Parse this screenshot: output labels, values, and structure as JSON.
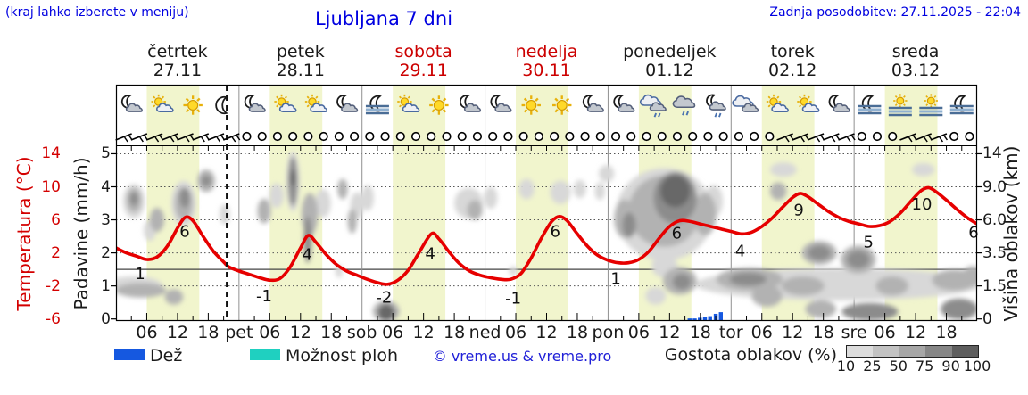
{
  "header": {
    "hint": "(kraj lahko izberete v meniju)",
    "title": "Ljubljana 7 dni",
    "updated": "Zadnja posodobitev: 27.11.2025 - 22:04"
  },
  "days": [
    {
      "name": "četrtek",
      "date": "27.11",
      "highlight": false
    },
    {
      "name": "petek",
      "date": "28.11",
      "highlight": false
    },
    {
      "name": "sobota",
      "date": "29.11",
      "highlight": true
    },
    {
      "name": "nedelja",
      "date": "30.11",
      "highlight": true
    },
    {
      "name": "ponedeljek",
      "date": "01.12",
      "highlight": false
    },
    {
      "name": "torek",
      "date": "02.12",
      "highlight": false
    },
    {
      "name": "sreda",
      "date": "03.12",
      "highlight": false
    }
  ],
  "axes": {
    "temperature": {
      "title": "Temperatura (°C)",
      "ticks": [
        14,
        10,
        6,
        2,
        -2,
        -6
      ],
      "color": "#d40000"
    },
    "precipitation": {
      "title": "Padavine (mm/h)",
      "ticks": [
        5,
        4,
        3,
        2,
        1,
        0
      ],
      "color": "#1a1a1a"
    },
    "cloud_height": {
      "title": "Višina oblakov (km)",
      "ticks": [
        "14",
        "9.0",
        "6.0",
        "3.5",
        "1.5",
        "0"
      ],
      "color": "#1a1a1a"
    },
    "time": {
      "hours": [
        "06",
        "12",
        "18"
      ],
      "day_abbr": [
        "pet",
        "sob",
        "ned",
        "pon",
        "tor",
        "sre"
      ]
    }
  },
  "legend": {
    "rain": {
      "label": "Dež",
      "color": "#1558e0"
    },
    "showers": {
      "label": "Možnost ploh",
      "color": "#1fd0c0"
    },
    "copyright": "© vreme.us & vreme.pro",
    "cloud_density": {
      "label": "Gostota oblakov (%)",
      "stops": [
        "10",
        "25",
        "50",
        "75",
        "90",
        "100"
      ],
      "colors": [
        "#dcdcdc",
        "#c2c2c2",
        "#a6a6a6",
        "#868686",
        "#5e5e5e"
      ]
    }
  },
  "chart_data": {
    "type": "line",
    "title": "Ljubljana 7 dni",
    "x_hours_range": [
      0,
      168
    ],
    "now_hour": 21.6,
    "day_band_hours": [
      6.0,
      16.25
    ],
    "day_band_color": "#f1f5cd",
    "temperature_series": {
      "name": "Temperatura",
      "unit": "°C",
      "color": "#e60000",
      "points": [
        [
          0,
          2.6
        ],
        [
          2,
          2.0
        ],
        [
          4,
          1.6
        ],
        [
          6,
          1.2
        ],
        [
          8,
          1.5
        ],
        [
          10,
          2.8
        ],
        [
          12,
          5.0
        ],
        [
          13.5,
          6.3
        ],
        [
          15,
          5.9
        ],
        [
          17,
          4.0
        ],
        [
          19,
          2.2
        ],
        [
          21,
          0.9
        ],
        [
          22,
          0.3
        ],
        [
          24,
          -0.2
        ],
        [
          26,
          -0.6
        ],
        [
          28,
          -1.0
        ],
        [
          30,
          -1.3
        ],
        [
          32,
          -1.1
        ],
        [
          34,
          0.3
        ],
        [
          36,
          2.6
        ],
        [
          37.5,
          4.1
        ],
        [
          39,
          3.3
        ],
        [
          41,
          1.8
        ],
        [
          43,
          0.6
        ],
        [
          45,
          -0.2
        ],
        [
          47,
          -0.7
        ],
        [
          49,
          -1.2
        ],
        [
          51,
          -1.6
        ],
        [
          53,
          -1.8
        ],
        [
          55,
          -1.3
        ],
        [
          57,
          -0.1
        ],
        [
          59,
          1.9
        ],
        [
          61.5,
          4.3
        ],
        [
          63,
          3.7
        ],
        [
          65,
          2.1
        ],
        [
          67,
          0.7
        ],
        [
          69,
          -0.2
        ],
        [
          71,
          -0.7
        ],
        [
          73,
          -1.0
        ],
        [
          75,
          -1.2
        ],
        [
          77,
          -1.2
        ],
        [
          79,
          -0.5
        ],
        [
          81,
          1.4
        ],
        [
          83,
          3.8
        ],
        [
          85,
          5.8
        ],
        [
          86.5,
          6.4
        ],
        [
          88,
          5.9
        ],
        [
          90,
          4.3
        ],
        [
          92,
          2.8
        ],
        [
          94,
          1.7
        ],
        [
          96,
          1.1
        ],
        [
          98,
          0.8
        ],
        [
          100,
          0.8
        ],
        [
          102,
          1.2
        ],
        [
          104,
          2.2
        ],
        [
          106,
          3.8
        ],
        [
          108,
          5.2
        ],
        [
          110,
          5.9
        ],
        [
          112,
          5.8
        ],
        [
          114,
          5.5
        ],
        [
          116,
          5.2
        ],
        [
          118,
          4.9
        ],
        [
          120,
          4.6
        ],
        [
          122,
          4.3
        ],
        [
          124,
          4.5
        ],
        [
          126,
          5.2
        ],
        [
          128,
          6.2
        ],
        [
          130,
          7.5
        ],
        [
          132,
          8.7
        ],
        [
          133.5,
          9.2
        ],
        [
          135,
          8.8
        ],
        [
          137,
          7.9
        ],
        [
          139,
          7.0
        ],
        [
          141,
          6.3
        ],
        [
          143,
          5.8
        ],
        [
          145,
          5.5
        ],
        [
          147,
          5.2
        ],
        [
          149,
          5.3
        ],
        [
          151,
          5.8
        ],
        [
          153,
          6.8
        ],
        [
          155,
          8.2
        ],
        [
          157,
          9.5
        ],
        [
          158.5,
          9.9
        ],
        [
          160,
          9.4
        ],
        [
          162,
          8.4
        ],
        [
          164,
          7.3
        ],
        [
          166,
          6.3
        ],
        [
          168,
          5.5
        ]
      ]
    },
    "temperature_labels": [
      {
        "t": 4.7,
        "at": -0.5,
        "text": "1"
      },
      {
        "t": 13.4,
        "at": 4.6,
        "text": "6"
      },
      {
        "t": 28.9,
        "at": -3.2,
        "text": "-1"
      },
      {
        "t": 37.3,
        "at": 1.8,
        "text": "4"
      },
      {
        "t": 52.3,
        "at": -3.4,
        "text": "-2"
      },
      {
        "t": 61.3,
        "at": 1.9,
        "text": "4"
      },
      {
        "t": 77.5,
        "at": -3.5,
        "text": "-1"
      },
      {
        "t": 85.7,
        "at": 4.6,
        "text": "6"
      },
      {
        "t": 97.5,
        "at": -1.1,
        "text": "1"
      },
      {
        "t": 109.4,
        "at": 4.4,
        "text": "6"
      },
      {
        "t": 121.8,
        "at": 2.2,
        "text": "4"
      },
      {
        "t": 133.2,
        "at": 7.2,
        "text": "9"
      },
      {
        "t": 146.8,
        "at": 3.3,
        "text": "5"
      },
      {
        "t": 157.2,
        "at": 7.9,
        "text": "10"
      },
      {
        "t": 167.3,
        "at": 4.5,
        "text": "6"
      }
    ],
    "precipitation_bars": {
      "unit": "mm/h",
      "color": "#1558e0",
      "bars": [
        [
          111.9,
          0.05
        ],
        [
          112.9,
          0.05
        ],
        [
          113.9,
          0.07
        ],
        [
          114.9,
          0.09
        ],
        [
          115.9,
          0.12
        ],
        [
          117,
          0.19
        ],
        [
          118,
          0.24
        ]
      ]
    },
    "wind_symbols": [
      "barb",
      "barb",
      "barb",
      "barb",
      "barb",
      "barb",
      "barb",
      "barb",
      "calm",
      "calm",
      "calm",
      "calm",
      "calm",
      "calm",
      "calm",
      "calm",
      "calm",
      "calm",
      "calm",
      "calm",
      "calm",
      "calm",
      "calm",
      "calm",
      "calm",
      "calm",
      "calm",
      "calm",
      "calm",
      "calm",
      "calm",
      "calm",
      "calm",
      "calm",
      "calm",
      "calm",
      "calm",
      "calm",
      "calm",
      "calm",
      "calm",
      "calm",
      "calm",
      "barb",
      "barb",
      "barb",
      "barb",
      "barb",
      "calm",
      "calm",
      "calm",
      "barb",
      "barb",
      "barb",
      "calm",
      "calm"
    ],
    "weather_icons": [
      "moon-cloud",
      "sun-cloud",
      "sun",
      "moon",
      "moon-cloud",
      "sun-cloud",
      "sun-cloud",
      "moon-cloud",
      "moon-fog",
      "sun-cloud",
      "sun",
      "moon-cloud",
      "moon-cloud",
      "sun",
      "sun",
      "moon-cloud",
      "moon-cloud",
      "clouds-drizzle",
      "cloud-drizzle",
      "moon-cloud-drizzle",
      "clouds",
      "sun-cloud",
      "sun-cloud",
      "moon-cloud",
      "moon-fog",
      "sun-fog",
      "sun-fog",
      "moon-fog"
    ],
    "cloud_density_colors": {
      "25": "#d8d8d8",
      "50": "#b2b2b2",
      "75": "#8c8c8c",
      "90": "#686868"
    },
    "cloud_blobs": [
      [
        3.5,
        7.7,
        2.1,
        1.6,
        25
      ],
      [
        3.5,
        7.8,
        1.4,
        1.1,
        50
      ],
      [
        3.5,
        7.9,
        0.8,
        0.6,
        75
      ],
      [
        8,
        6,
        1.4,
        1.0,
        50
      ],
      [
        6.6,
        5.2,
        1.2,
        0.8,
        25
      ],
      [
        13.2,
        7.5,
        2.4,
        2.1,
        25
      ],
      [
        13.2,
        7.5,
        1.7,
        1.5,
        50
      ],
      [
        13.4,
        8,
        1.0,
        0.9,
        75
      ],
      [
        17.6,
        9.9,
        1.7,
        1.5,
        50
      ],
      [
        17.6,
        9.9,
        0.9,
        0.8,
        75
      ],
      [
        21.2,
        6.5,
        1.0,
        0.9,
        25
      ],
      [
        3.5,
        1.5,
        5.5,
        0.5,
        25
      ],
      [
        4.9,
        1.3,
        4.9,
        0.35,
        50
      ],
      [
        11.3,
        1.0,
        1.8,
        0.35,
        50
      ],
      [
        28.9,
        6.8,
        1.3,
        1.1,
        50
      ],
      [
        31.3,
        8.2,
        1.4,
        1.2,
        25
      ],
      [
        34.5,
        9.8,
        1.3,
        3.6,
        25
      ],
      [
        34.5,
        9.8,
        0.9,
        3.0,
        75
      ],
      [
        34.5,
        10.3,
        0.5,
        1.2,
        90
      ],
      [
        37.8,
        6.5,
        1.6,
        1.8,
        50
      ],
      [
        37.4,
        4.5,
        0.8,
        1.7,
        75
      ],
      [
        40.4,
        7.5,
        1.5,
        1.3,
        25
      ],
      [
        44.2,
        8.8,
        1.0,
        1.1,
        50
      ],
      [
        46.1,
        5.9,
        0.9,
        1.0,
        50
      ],
      [
        47,
        7.3,
        1.3,
        1.2,
        25
      ],
      [
        43.5,
        2.4,
        0.7,
        0.4,
        25
      ],
      [
        49.1,
        8,
        1.2,
        1.2,
        25
      ],
      [
        52.7,
        0.35,
        2.6,
        0.6,
        50
      ],
      [
        52.7,
        0.3,
        1.6,
        0.45,
        90
      ],
      [
        68.8,
        7.5,
        2.8,
        1.4,
        25
      ],
      [
        70,
        6.9,
        1.5,
        0.9,
        50
      ],
      [
        73.1,
        8,
        1.3,
        1.0,
        25
      ],
      [
        80.1,
        8.8,
        1.5,
        1.1,
        25
      ],
      [
        86.7,
        8.5,
        2.0,
        1.2,
        25
      ],
      [
        90.5,
        8.8,
        1.2,
        1.0,
        25
      ],
      [
        77.5,
        2.4,
        0.8,
        0.3,
        25
      ],
      [
        107,
        6.5,
        9.5,
        4.0,
        25
      ],
      [
        107,
        6.8,
        7.0,
        3.2,
        50
      ],
      [
        109.1,
        8,
        4.2,
        2.6,
        75
      ],
      [
        109.1,
        8.6,
        2.9,
        1.7,
        90
      ],
      [
        99.2,
        6.1,
        2.0,
        1.6,
        50
      ],
      [
        100.1,
        5.6,
        1.3,
        1.0,
        75
      ],
      [
        95.7,
        11,
        1.5,
        1.3,
        25
      ],
      [
        94.4,
        8.6,
        1.0,
        0.9,
        25
      ],
      [
        114.9,
        6.5,
        2.2,
        1.8,
        50
      ],
      [
        116.6,
        7.7,
        1.8,
        1.5,
        25
      ],
      [
        107,
        2.7,
        2.5,
        0.7,
        25
      ],
      [
        110,
        1.8,
        3.3,
        0.75,
        50
      ],
      [
        110.4,
        1.75,
        1.8,
        0.45,
        75
      ],
      [
        105.3,
        1.05,
        2.0,
        0.4,
        25
      ],
      [
        141,
        1.6,
        28,
        0.85,
        25
      ],
      [
        123.6,
        1.9,
        6.5,
        0.65,
        50
      ],
      [
        123.3,
        1.9,
        3.6,
        0.4,
        75
      ],
      [
        134,
        1.5,
        4.2,
        0.5,
        50
      ],
      [
        127,
        1.05,
        3.0,
        0.5,
        50
      ],
      [
        137.2,
        3.5,
        3.4,
        0.8,
        50
      ],
      [
        137.2,
        3.5,
        2.2,
        0.5,
        75
      ],
      [
        144.8,
        3.1,
        3.4,
        0.9,
        50
      ],
      [
        144.8,
        3.1,
        2.2,
        0.55,
        75
      ],
      [
        151.4,
        1.5,
        3.2,
        0.5,
        50
      ],
      [
        163.6,
        1.85,
        4.4,
        0.6,
        50
      ],
      [
        167.1,
        2.1,
        2.0,
        0.6,
        50
      ],
      [
        147.1,
        0.33,
        5.5,
        0.45,
        75
      ],
      [
        164.5,
        0.45,
        3.6,
        0.5,
        75
      ],
      [
        137.5,
        0.45,
        3.0,
        0.4,
        50
      ],
      [
        129.2,
        8.6,
        1.6,
        0.9,
        50
      ],
      [
        130.2,
        11.6,
        2.6,
        1.1,
        25
      ],
      [
        157.5,
        11.6,
        2.2,
        1.0,
        25
      ]
    ]
  }
}
